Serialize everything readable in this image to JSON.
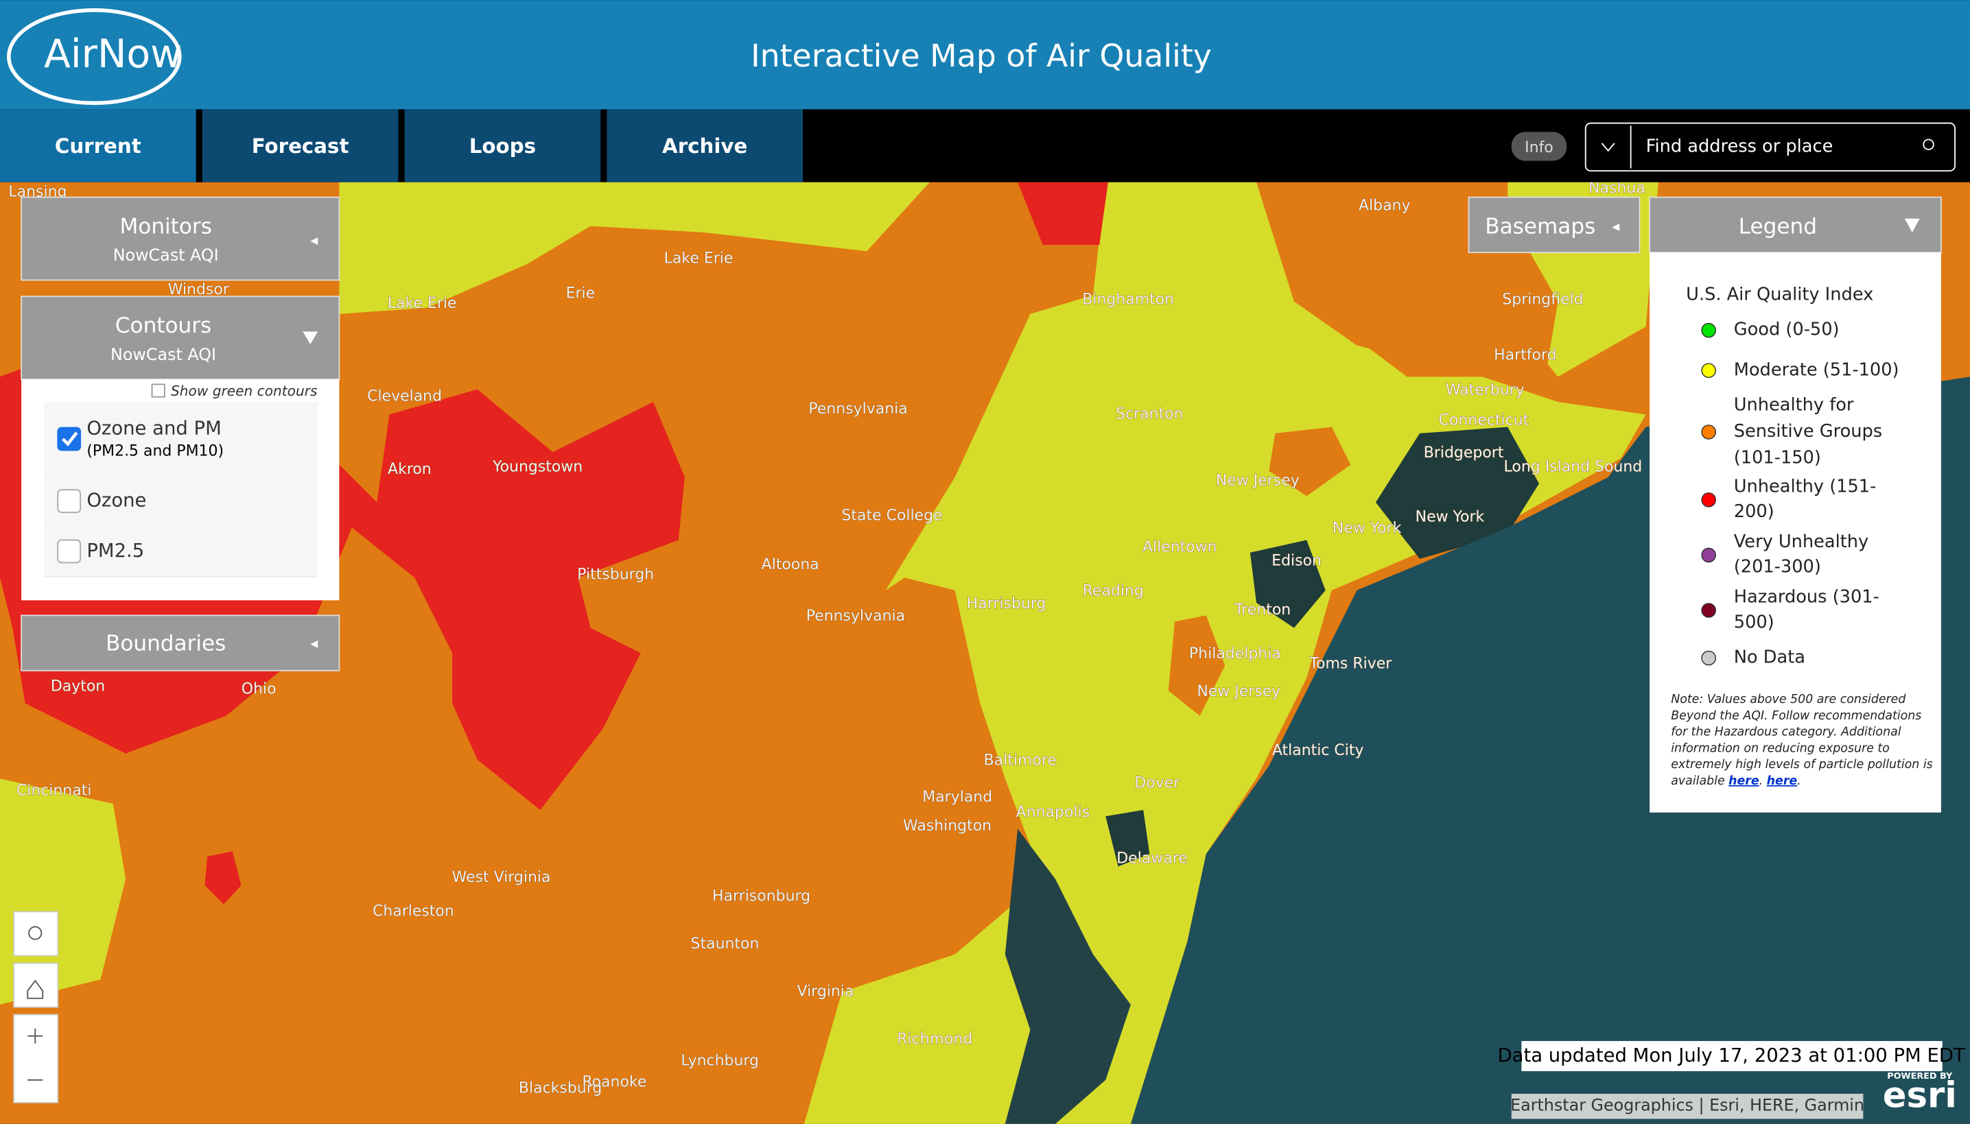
{
  "header": {
    "logo": "AirNow",
    "title": "Interactive Map of Air Quality"
  },
  "nav": {
    "tabs": [
      "Current",
      "Forecast",
      "Loops",
      "Archive"
    ],
    "active": 0,
    "info": "Info",
    "search_placeholder": "Find address or place"
  },
  "panels": {
    "monitors": {
      "title": "Monitors",
      "subtitle": "NowCast AQI"
    },
    "contours": {
      "title": "Contours",
      "subtitle": "NowCast AQI",
      "show_green": "Show green contours",
      "options": [
        {
          "label": "Ozone and PM",
          "sublabel": "(PM2.5 and PM10)",
          "checked": true
        },
        {
          "label": "Ozone",
          "checked": false
        },
        {
          "label": "PM2.5",
          "checked": false
        }
      ]
    },
    "boundaries": {
      "title": "Boundaries"
    },
    "basemaps": {
      "title": "Basemaps"
    }
  },
  "legend": {
    "title": "Legend",
    "heading": "U.S. Air Quality Index",
    "items": [
      {
        "lines": [
          "Good (0-50)"
        ],
        "color": "#00e400"
      },
      {
        "lines": [
          "Moderate (51-100)"
        ],
        "color": "#ffff00"
      },
      {
        "lines": [
          "Unhealthy for",
          "Sensitive Groups",
          "(101-150)"
        ],
        "color": "#ff7e00"
      },
      {
        "lines": [
          "Unhealthy (151-",
          "200)"
        ],
        "color": "#ff0000"
      },
      {
        "lines": [
          "Very Unhealthy",
          "(201-300)"
        ],
        "color": "#8f3f97"
      },
      {
        "lines": [
          "Hazardous (301-",
          "500)"
        ],
        "color": "#7e0023"
      },
      {
        "lines": [
          "No Data"
        ],
        "color": "#cccccc"
      }
    ],
    "note_lines": [
      "Note: Values above 500 are considered",
      "Beyond the AQI. Follow recommendations",
      "for the Hazardous category. Additional",
      "information on reducing exposure to",
      "extremely high levels of particle pollution is"
    ],
    "note_end": [
      "available",
      "here",
      ".",
      "here",
      "."
    ]
  },
  "status": "Data updated Mon July 17, 2023 at 01:00 PM EDT",
  "attribution": "Earthstar Geographics | Esri, HERE, Garmin",
  "esri": {
    "powered": "POWERED BY",
    "brand": "esri"
  },
  "map_labels": [
    "Lansing",
    "Windsor",
    "Lake Erie",
    "Erie",
    "Cleveland",
    "Akron",
    "Youngstown",
    "Pennsylvania",
    "State College",
    "Altoona",
    "Pittsburgh",
    "Pennsylvania",
    "Harrisburg",
    "Ohio",
    "Dayton",
    "Cincinnati",
    "West Virginia",
    "Charleston",
    "Harrisonburg",
    "Staunton",
    "Virginia",
    "Richmond",
    "Lynchburg",
    "Blacksburg",
    "Roanoke",
    "Baltimore",
    "Maryland",
    "Washington",
    "Annapolis",
    "Dover",
    "Delaware",
    "Atlantic City",
    "Toms River",
    "Philadelphia",
    "New Jersey",
    "Trenton",
    "Allentown",
    "Reading",
    "Edison",
    "New Jersey",
    "New York",
    "Scranton",
    "Binghamton",
    "Albany",
    "Springfield",
    "Hartford",
    "Waterbury",
    "Connecticut",
    "Bridgeport",
    "New York",
    "Long Island Sound",
    "Nashua",
    "Lake Erie"
  ]
}
